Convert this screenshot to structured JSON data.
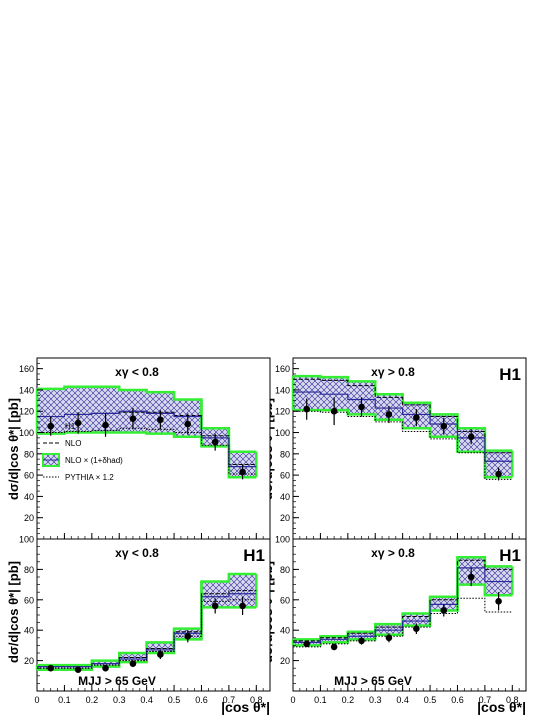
{
  "figure": {
    "ylabel": "dσ/d|cos θ*| [pb]",
    "xlabel_top": "",
    "xlabel_bottom": "|cos θ*|",
    "legend": {
      "h1": "H1",
      "nlo": "NLO",
      "nlo_had": "NLO × (1+δhad)",
      "pythia": "PYTHIA × 1.2"
    },
    "colors": {
      "band_fill": "#d8d8ee",
      "band_hatch": "#2a2a9a",
      "nlo_had_line": "#2a2a9a",
      "green_band": "#33ee33",
      "data": "#000000"
    }
  },
  "chart_data": [
    {
      "type": "histogram",
      "panel": "top-left",
      "label": "xγ < 0.8",
      "h1_label": "",
      "mjj_label": "",
      "ylim": [
        0,
        170
      ],
      "yticks": [
        20,
        40,
        60,
        80,
        100,
        120,
        140,
        160
      ],
      "xlim": [
        0,
        0.85
      ],
      "bins": [
        [
          0,
          0.1
        ],
        [
          0.1,
          0.2
        ],
        [
          0.2,
          0.3
        ],
        [
          0.3,
          0.4
        ],
        [
          0.4,
          0.5
        ],
        [
          0.5,
          0.6
        ],
        [
          0.6,
          0.7
        ],
        [
          0.7,
          0.8
        ]
      ],
      "data": {
        "name": "H1",
        "x": [
          0.05,
          0.15,
          0.25,
          0.35,
          0.45,
          0.55,
          0.65,
          0.75
        ],
        "y": [
          106,
          109,
          107,
          113,
          112,
          108,
          91,
          63
        ],
        "err_lo": [
          9,
          10,
          11,
          10,
          9,
          10,
          8,
          7
        ],
        "err_hi": [
          9,
          10,
          11,
          10,
          9,
          10,
          8,
          7
        ]
      },
      "nlo": [
        115,
        117,
        118,
        119,
        119,
        116,
        97,
        70
      ],
      "nlo_had": [
        115,
        117,
        118,
        120,
        118,
        115,
        95,
        68
      ],
      "band_lo": [
        99,
        100,
        100,
        100,
        99,
        96,
        87,
        58
      ],
      "band_hi": [
        141,
        143,
        143,
        140,
        138,
        131,
        104,
        82
      ],
      "pythia": [
        100,
        101,
        102,
        104,
        103,
        100,
        88,
        61
      ],
      "show_legend": true
    },
    {
      "type": "histogram",
      "panel": "top-right",
      "label": "xγ > 0.8",
      "h1_label": "H1",
      "mjj_label": "",
      "ylim": [
        0,
        170
      ],
      "yticks": [
        20,
        40,
        60,
        80,
        100,
        120,
        140,
        160
      ],
      "xlim": [
        0,
        0.85
      ],
      "bins": [
        [
          0,
          0.1
        ],
        [
          0.1,
          0.2
        ],
        [
          0.2,
          0.3
        ],
        [
          0.3,
          0.4
        ],
        [
          0.4,
          0.5
        ],
        [
          0.5,
          0.6
        ],
        [
          0.6,
          0.7
        ],
        [
          0.7,
          0.8
        ]
      ],
      "data": {
        "name": "H1",
        "x": [
          0.05,
          0.15,
          0.25,
          0.35,
          0.45,
          0.55,
          0.65,
          0.75
        ],
        "y": [
          122,
          120,
          124,
          117,
          114,
          106,
          96,
          61
        ],
        "err_lo": [
          10,
          13,
          9,
          8,
          8,
          8,
          7,
          6
        ],
        "err_hi": [
          10,
          13,
          9,
          8,
          8,
          8,
          7,
          6
        ]
      },
      "nlo": [
        150,
        149,
        144,
        133,
        126,
        115,
        101,
        81
      ],
      "nlo_had": [
        138,
        136,
        131,
        123,
        117,
        108,
        95,
        73
      ],
      "band_lo": [
        121,
        121,
        117,
        112,
        104,
        96,
        82,
        58
      ],
      "band_hi": [
        153,
        152,
        148,
        136,
        128,
        117,
        104,
        83
      ],
      "pythia": [
        120,
        119,
        115,
        110,
        101,
        94,
        81,
        56
      ],
      "show_legend": false
    },
    {
      "type": "histogram",
      "panel": "bottom-left",
      "label": "xγ < 0.8",
      "h1_label": "H1",
      "mjj_label": "MJJ > 65 GeV",
      "ylim": [
        0,
        100
      ],
      "yticks": [
        20,
        40,
        60,
        80,
        100
      ],
      "xlim": [
        0,
        0.85
      ],
      "xticks": [
        0,
        0.1,
        0.2,
        0.3,
        0.4,
        0.5,
        0.6,
        0.7,
        0.8
      ],
      "bins": [
        [
          0,
          0.1
        ],
        [
          0.1,
          0.2
        ],
        [
          0.2,
          0.3
        ],
        [
          0.3,
          0.4
        ],
        [
          0.4,
          0.5
        ],
        [
          0.5,
          0.6
        ],
        [
          0.6,
          0.7
        ],
        [
          0.7,
          0.8
        ]
      ],
      "data": {
        "name": "H1",
        "x": [
          0.05,
          0.15,
          0.25,
          0.35,
          0.45,
          0.55,
          0.65,
          0.75
        ],
        "y": [
          15,
          14,
          15,
          18,
          24,
          36,
          56,
          56
        ],
        "err_lo": [
          1.5,
          1.5,
          2,
          2,
          3,
          4,
          5,
          6
        ],
        "err_hi": [
          1.5,
          1.5,
          2,
          2,
          3,
          4,
          5,
          6
        ]
      },
      "nlo": [
        16,
        16,
        18,
        22,
        28,
        39,
        64,
        66
      ],
      "nlo_had": [
        16,
        16,
        18,
        21,
        27,
        38,
        62,
        64
      ],
      "band_lo": [
        14,
        14,
        16,
        19,
        25,
        34,
        55,
        55
      ],
      "band_hi": [
        17,
        17,
        20,
        25,
        32,
        41,
        72,
        77
      ],
      "pythia": [
        15,
        15,
        17,
        20,
        26,
        36,
        59,
        60
      ],
      "show_legend": false
    },
    {
      "type": "histogram",
      "panel": "bottom-right",
      "label": "xγ > 0.8",
      "h1_label": "H1",
      "mjj_label": "MJJ > 65 GeV",
      "ylim": [
        0,
        100
      ],
      "yticks": [
        20,
        40,
        60,
        80,
        100
      ],
      "xlim": [
        0,
        0.85
      ],
      "xticks": [
        0,
        0.1,
        0.2,
        0.3,
        0.4,
        0.5,
        0.6,
        0.7,
        0.8
      ],
      "bins": [
        [
          0,
          0.1
        ],
        [
          0.1,
          0.2
        ],
        [
          0.2,
          0.3
        ],
        [
          0.3,
          0.4
        ],
        [
          0.4,
          0.5
        ],
        [
          0.5,
          0.6
        ],
        [
          0.6,
          0.7
        ],
        [
          0.7,
          0.8
        ]
      ],
      "data": {
        "name": "H1",
        "x": [
          0.05,
          0.15,
          0.25,
          0.35,
          0.45,
          0.55,
          0.65,
          0.75
        ],
        "y": [
          31,
          29,
          33,
          35,
          41,
          53,
          75,
          59
        ],
        "err_lo": [
          2,
          2,
          2.5,
          3,
          3.5,
          4,
          6,
          6
        ],
        "err_hi": [
          2,
          2,
          2.5,
          3,
          3.5,
          4,
          6,
          6
        ]
      },
      "nlo": [
        33,
        35,
        38,
        42,
        49,
        60,
        86,
        80
      ],
      "nlo_had": [
        32,
        34,
        36,
        40,
        46,
        57,
        81,
        72
      ],
      "band_lo": [
        30,
        32,
        34,
        37,
        43,
        53,
        70,
        63
      ],
      "band_hi": [
        34,
        36,
        39,
        44,
        51,
        62,
        88,
        82
      ],
      "pythia": [
        29,
        31,
        33,
        36,
        42,
        51,
        61,
        52
      ],
      "show_legend": false
    }
  ]
}
